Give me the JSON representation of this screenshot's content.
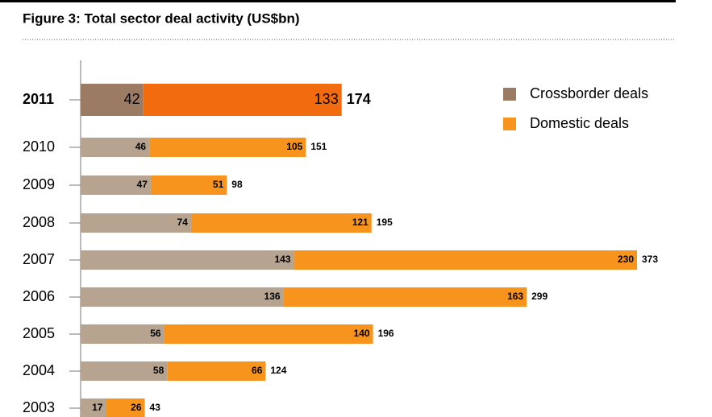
{
  "chart_data": {
    "type": "stacked-hbar",
    "title": "Figure 3: Total sector deal activity (US$bn)",
    "categories": [
      "2011",
      "2010",
      "2009",
      "2008",
      "2007",
      "2006",
      "2005",
      "2004",
      "2003"
    ],
    "series": [
      {
        "name": "Crossborder deals",
        "color": "#b6a491",
        "highlight_color": "#9c7b65",
        "values": [
          42,
          46,
          47,
          74,
          143,
          136,
          56,
          58,
          17
        ]
      },
      {
        "name": "Domestic deals",
        "color": "#f7941d",
        "highlight_color": "#f26b0f",
        "values": [
          133,
          105,
          51,
          121,
          230,
          163,
          140,
          66,
          26
        ]
      }
    ],
    "totals": [
      174,
      151,
      98,
      195,
      373,
      299,
      196,
      124,
      43
    ],
    "highlight_index": 0,
    "legend": "top-right"
  }
}
